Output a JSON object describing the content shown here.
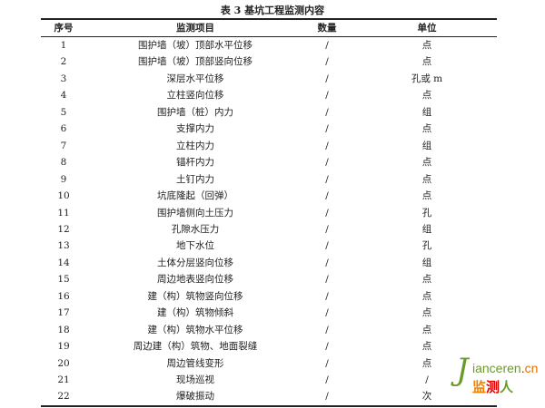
{
  "title": "表 3   基坑工程监测内容",
  "headers": [
    "序号",
    "监测项目",
    "数量",
    "单位"
  ],
  "rows": [
    [
      "1",
      "围护墙（坡）顶部水平位移",
      "/",
      "点"
    ],
    [
      "2",
      "围护墙（坡）顶部竖向位移",
      "/",
      "点"
    ],
    [
      "3",
      "深层水平位移",
      "/",
      "孔或 m"
    ],
    [
      "4",
      "立柱竖向位移",
      "/",
      "点"
    ],
    [
      "5",
      "围护墙（桩）内力",
      "/",
      "组"
    ],
    [
      "6",
      "支撑内力",
      "/",
      "点"
    ],
    [
      "7",
      "立柱内力",
      "/",
      "组"
    ],
    [
      "8",
      "锚杆内力",
      "/",
      "点"
    ],
    [
      "9",
      "土钉内力",
      "/",
      "点"
    ],
    [
      "10",
      "坑底隆起（回弹）",
      "/",
      "点"
    ],
    [
      "11",
      "围护墙侧向土压力",
      "/",
      "孔"
    ],
    [
      "12",
      "孔隙水压力",
      "/",
      "组"
    ],
    [
      "13",
      "地下水位",
      "/",
      "孔"
    ],
    [
      "14",
      "土体分层竖向位移",
      "/",
      "组"
    ],
    [
      "15",
      "周边地表竖向位移",
      "/",
      "点"
    ],
    [
      "16",
      "建（构）筑物竖向位移",
      "/",
      "点"
    ],
    [
      "17",
      "建（构）筑物倾斜",
      "/",
      "点"
    ],
    [
      "18",
      "建（构）筑物水平位移",
      "/",
      "点"
    ],
    [
      "19",
      "周边建（构）筑物、地面裂缝",
      "/",
      "点"
    ],
    [
      "20",
      "周边管线变形",
      "/",
      "点"
    ],
    [
      "21",
      "现场巡视",
      "/",
      "/"
    ],
    [
      "22",
      "爆破振动",
      "/",
      "次"
    ]
  ],
  "watermark": {
    "j": "J",
    "domain": "ianceren",
    "dot": ".",
    "tld": "cn",
    "cn1": "监",
    "cn2": "测",
    "cn3": "人"
  }
}
